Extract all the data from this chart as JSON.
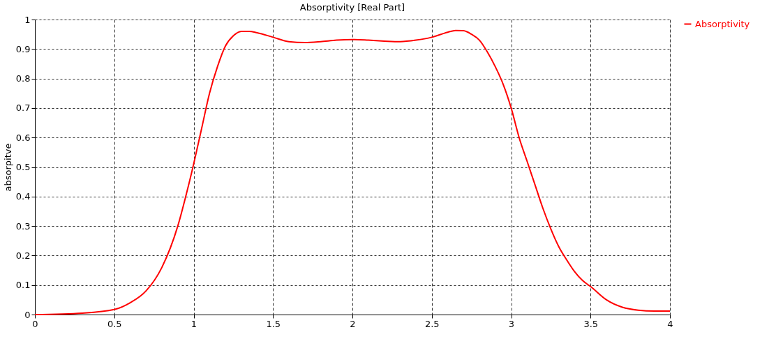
{
  "chart_data": {
    "type": "line",
    "title": "Absorptivity [Real Part]",
    "ylabel": "absorpitve",
    "x": [
      0,
      0.3,
      0.5,
      0.6,
      0.7,
      0.8,
      0.9,
      0.95,
      1.0,
      1.05,
      1.1,
      1.15,
      1.2,
      1.25,
      1.3,
      1.35,
      1.4,
      1.5,
      1.6,
      1.7,
      1.8,
      1.9,
      2.0,
      2.1,
      2.2,
      2.3,
      2.4,
      2.5,
      2.6,
      2.65,
      2.7,
      2.75,
      2.8,
      2.85,
      2.9,
      2.95,
      3.0,
      3.05,
      3.1,
      3.15,
      3.2,
      3.25,
      3.3,
      3.35,
      3.4,
      3.45,
      3.5,
      3.6,
      3.7,
      3.8,
      3.9,
      4.0
    ],
    "series": [
      {
        "name": "Absorptivity",
        "color": "#ff0000",
        "values": [
          0,
          0.005,
          0.017,
          0.04,
          0.08,
          0.16,
          0.3,
          0.4,
          0.51,
          0.63,
          0.75,
          0.84,
          0.91,
          0.945,
          0.96,
          0.96,
          0.955,
          0.94,
          0.925,
          0.922,
          0.925,
          0.93,
          0.932,
          0.93,
          0.927,
          0.925,
          0.93,
          0.94,
          0.957,
          0.963,
          0.962,
          0.95,
          0.93,
          0.89,
          0.84,
          0.78,
          0.7,
          0.6,
          0.52,
          0.44,
          0.36,
          0.29,
          0.23,
          0.185,
          0.145,
          0.115,
          0.095,
          0.05,
          0.025,
          0.015,
          0.012,
          0.012
        ]
      }
    ],
    "xlim": [
      0,
      4
    ],
    "xticks": [
      0,
      0.5,
      1,
      1.5,
      2,
      2.5,
      3,
      3.5,
      4
    ],
    "ylim": [
      0,
      1
    ],
    "yticks": [
      0,
      0.1,
      0.2,
      0.3,
      0.4,
      0.5,
      0.6,
      0.7,
      0.8,
      0.9,
      1
    ],
    "grid": true,
    "legend": "top right",
    "marker": "none",
    "line_style": "solid"
  }
}
